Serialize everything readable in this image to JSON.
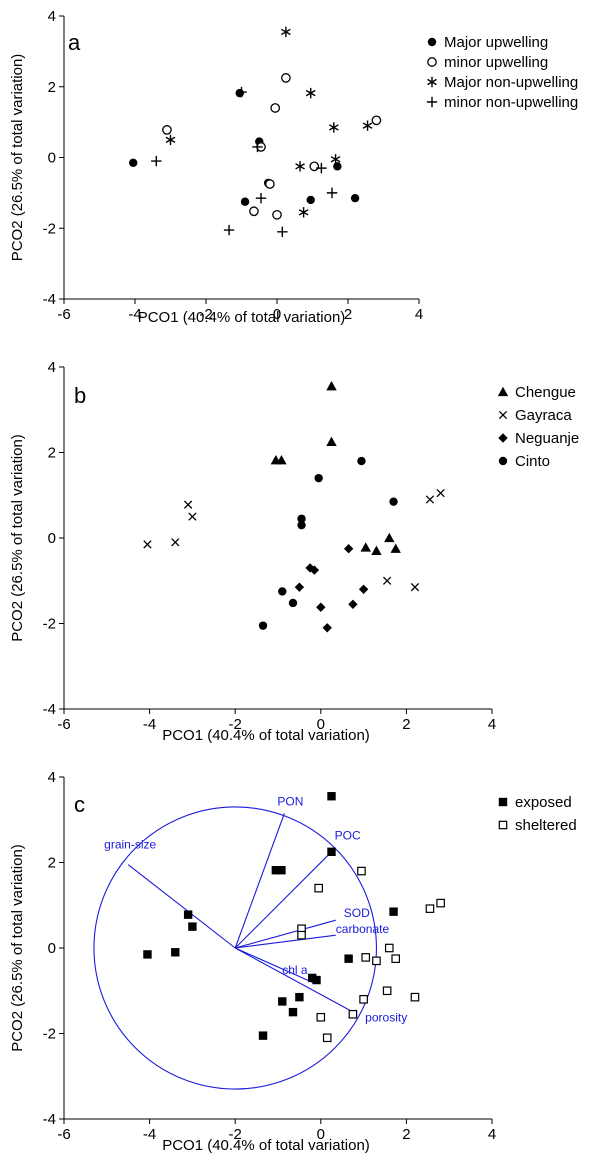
{
  "chart_data": [
    {
      "type": "scatter",
      "panel": "a",
      "xlabel": "PCO1 (40.4% of total variation)",
      "ylabel": "PCO2 (26.5% of total variation)",
      "xlim": [
        -6,
        4
      ],
      "ylim": [
        -4,
        4
      ],
      "xticks": [
        "-6",
        "-4",
        "-2",
        "0",
        "2",
        "4"
      ],
      "yticks": [
        "-4",
        "-2",
        "0",
        "2",
        "4"
      ],
      "series": [
        {
          "name": "Major upwelling",
          "marker": "filled-circle",
          "points": [
            [
              -4.05,
              -0.15
            ],
            [
              -1.05,
              1.82
            ],
            [
              -0.5,
              0.45
            ],
            [
              -0.25,
              -0.72
            ],
            [
              -0.9,
              -1.25
            ],
            [
              1.7,
              -0.25
            ],
            [
              0.95,
              -1.2
            ],
            [
              2.2,
              -1.15
            ]
          ]
        },
        {
          "name": "minor upwelling",
          "marker": "open-circle",
          "points": [
            [
              -3.1,
              0.78
            ],
            [
              0.25,
              2.25
            ],
            [
              -0.05,
              1.4
            ],
            [
              -0.45,
              0.3
            ],
            [
              2.8,
              1.05
            ],
            [
              1.05,
              -0.25
            ],
            [
              -0.2,
              -0.75
            ],
            [
              -0.65,
              -1.52
            ],
            [
              0.0,
              -1.62
            ]
          ]
        },
        {
          "name": "Major non-upwelling",
          "marker": "asterisk",
          "points": [
            [
              0.25,
              3.55
            ],
            [
              0.95,
              1.82
            ],
            [
              -3.0,
              0.5
            ],
            [
              1.6,
              0.85
            ],
            [
              2.55,
              0.9
            ],
            [
              0.65,
              -0.25
            ],
            [
              1.65,
              -0.05
            ],
            [
              0.75,
              -1.55
            ]
          ]
        },
        {
          "name": "minor non-upwelling",
          "marker": "plus",
          "points": [
            [
              -1.0,
              1.85
            ],
            [
              -3.4,
              -0.1
            ],
            [
              -0.55,
              0.3
            ],
            [
              1.25,
              -0.3
            ],
            [
              1.55,
              -1.0
            ],
            [
              -0.45,
              -1.15
            ],
            [
              -1.35,
              -2.05
            ],
            [
              0.15,
              -2.1
            ]
          ]
        }
      ]
    },
    {
      "type": "scatter",
      "panel": "b",
      "xlabel": "PCO1 (40.4% of total variation)",
      "ylabel": "PCO2 (26.5% of total variation)",
      "xlim": [
        -6,
        4
      ],
      "ylim": [
        -4,
        4
      ],
      "xticks": [
        "-6",
        "-4",
        "-2",
        "0",
        "2",
        "4"
      ],
      "yticks": [
        "-4",
        "-2",
        "0",
        "2",
        "4"
      ],
      "series": [
        {
          "name": "Chengue",
          "marker": "triangle",
          "points": [
            [
              0.25,
              3.55
            ],
            [
              0.25,
              2.25
            ],
            [
              -1.05,
              1.82
            ],
            [
              -0.92,
              1.82
            ],
            [
              1.6,
              0.0
            ],
            [
              1.05,
              -0.22
            ],
            [
              1.3,
              -0.3
            ],
            [
              1.75,
              -0.25
            ]
          ]
        },
        {
          "name": "Gayraca",
          "marker": "x",
          "points": [
            [
              -3.1,
              0.78
            ],
            [
              -3.0,
              0.5
            ],
            [
              -4.05,
              -0.15
            ],
            [
              -3.4,
              -0.1
            ],
            [
              2.55,
              0.9
            ],
            [
              2.8,
              1.05
            ],
            [
              1.55,
              -1.0
            ],
            [
              2.2,
              -1.15
            ]
          ]
        },
        {
          "name": "Neguanje",
          "marker": "diamond",
          "points": [
            [
              0.65,
              -0.25
            ],
            [
              -0.25,
              -0.7
            ],
            [
              -0.15,
              -0.75
            ],
            [
              1.0,
              -1.2
            ],
            [
              0.75,
              -1.55
            ],
            [
              -0.5,
              -1.15
            ],
            [
              0.0,
              -1.62
            ],
            [
              0.15,
              -2.1
            ]
          ]
        },
        {
          "name": "Cinto",
          "marker": "filled-circle",
          "points": [
            [
              0.95,
              1.8
            ],
            [
              -0.05,
              1.4
            ],
            [
              -0.45,
              0.45
            ],
            [
              -0.45,
              0.3
            ],
            [
              1.7,
              0.85
            ],
            [
              -0.9,
              -1.25
            ],
            [
              -0.65,
              -1.52
            ],
            [
              -1.35,
              -2.05
            ]
          ]
        }
      ]
    },
    {
      "type": "scatter",
      "panel": "c",
      "xlabel": "PCO1 (40.4% of total variation)",
      "ylabel": "PCO2 (26.5% of total variation)",
      "xlim": [
        -6,
        4
      ],
      "ylim": [
        -4,
        4
      ],
      "xticks": [
        "-6",
        "-4",
        "-2",
        "0",
        "2",
        "4"
      ],
      "yticks": [
        "-4",
        "-2",
        "0",
        "2",
        "4"
      ],
      "series": [
        {
          "name": "exposed",
          "marker": "filled-square",
          "points": [
            [
              0.25,
              3.55
            ],
            [
              0.25,
              2.25
            ],
            [
              -1.05,
              1.82
            ],
            [
              -0.92,
              1.82
            ],
            [
              -3.1,
              0.78
            ],
            [
              -3.0,
              0.5
            ],
            [
              -4.05,
              -0.15
            ],
            [
              -3.4,
              -0.1
            ],
            [
              1.7,
              0.85
            ],
            [
              0.65,
              -0.25
            ],
            [
              -0.2,
              -0.7
            ],
            [
              -0.1,
              -0.75
            ],
            [
              -0.9,
              -1.25
            ],
            [
              -0.5,
              -1.15
            ],
            [
              -0.65,
              -1.5
            ],
            [
              -1.35,
              -2.05
            ]
          ]
        },
        {
          "name": "sheltered",
          "marker": "open-square",
          "points": [
            [
              0.95,
              1.8
            ],
            [
              -0.05,
              1.4
            ],
            [
              -0.45,
              0.45
            ],
            [
              -0.45,
              0.3
            ],
            [
              2.55,
              0.92
            ],
            [
              2.8,
              1.05
            ],
            [
              1.6,
              0.0
            ],
            [
              1.05,
              -0.22
            ],
            [
              1.3,
              -0.3
            ],
            [
              1.75,
              -0.25
            ],
            [
              1.55,
              -1.0
            ],
            [
              2.2,
              -1.15
            ],
            [
              1.0,
              -1.2
            ],
            [
              0.75,
              -1.55
            ],
            [
              0.0,
              -1.62
            ],
            [
              0.15,
              -2.1
            ]
          ]
        }
      ],
      "correlation_circle": {
        "center": [
          -2,
          0
        ],
        "radius": 3.3,
        "color": "#1a1adb"
      },
      "vectors": [
        {
          "label": "grain-size",
          "to": [
            -4.5,
            1.95
          ]
        },
        {
          "label": "PON",
          "to": [
            -0.85,
            3.15
          ]
        },
        {
          "label": "POC",
          "to": [
            0.3,
            2.3
          ]
        },
        {
          "label": "SOD",
          "to": [
            0.35,
            0.65
          ]
        },
        {
          "label": "carbonate",
          "to": [
            0.35,
            0.3
          ]
        },
        {
          "label": "chl a",
          "to": [
            -0.2,
            -0.8
          ]
        },
        {
          "label": "porosity",
          "to": [
            0.85,
            -1.55
          ]
        }
      ]
    }
  ],
  "colors": {
    "vector": "#1a1adb",
    "marker": "#000000"
  }
}
